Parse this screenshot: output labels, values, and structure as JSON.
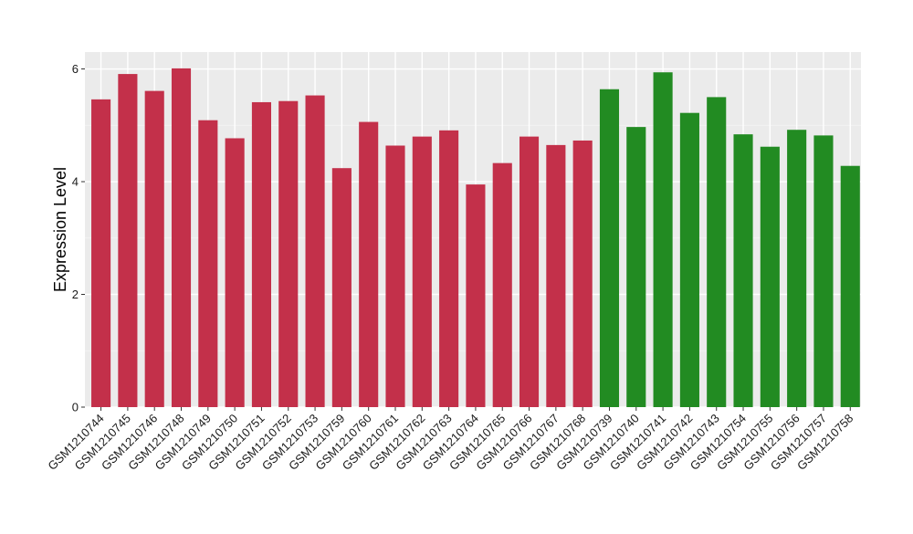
{
  "chart_data": {
    "type": "bar",
    "title": "",
    "xlabel": "",
    "ylabel": "Expression Level",
    "ylim": [
      0,
      6.3
    ],
    "yticks": [
      0,
      2,
      4,
      6
    ],
    "grid": true,
    "legend": "none",
    "categories": [
      "GSM1210744",
      "GSM1210745",
      "GSM1210746",
      "GSM1210748",
      "GSM1210749",
      "GSM1210750",
      "GSM1210751",
      "GSM1210752",
      "GSM1210753",
      "GSM1210759",
      "GSM1210760",
      "GSM1210761",
      "GSM1210762",
      "GSM1210763",
      "GSM1210764",
      "GSM1210765",
      "GSM1210766",
      "GSM1210767",
      "GSM1210768",
      "GSM1210739",
      "GSM1210740",
      "GSM1210741",
      "GSM1210742",
      "GSM1210743",
      "GSM1210754",
      "GSM1210755",
      "GSM1210756",
      "GSM1210757",
      "GSM1210758"
    ],
    "values": [
      5.46,
      5.91,
      5.61,
      6.01,
      5.09,
      4.77,
      5.41,
      5.43,
      5.53,
      4.24,
      5.06,
      4.64,
      4.8,
      4.91,
      3.95,
      4.33,
      4.8,
      4.65,
      4.73,
      5.64,
      4.97,
      5.94,
      5.22,
      5.5,
      4.84,
      4.62,
      4.92,
      4.82,
      4.28
    ],
    "bar_colors": [
      "#C3304A",
      "#C3304A",
      "#C3304A",
      "#C3304A",
      "#C3304A",
      "#C3304A",
      "#C3304A",
      "#C3304A",
      "#C3304A",
      "#C3304A",
      "#C3304A",
      "#C3304A",
      "#C3304A",
      "#C3304A",
      "#C3304A",
      "#C3304A",
      "#C3304A",
      "#C3304A",
      "#C3304A",
      "#228B22",
      "#228B22",
      "#228B22",
      "#228B22",
      "#228B22",
      "#228B22",
      "#228B22",
      "#228B22",
      "#228B22",
      "#228B22"
    ],
    "colors": {
      "panel_background": "#EBEBEB",
      "grid_major": "#FFFFFF",
      "grid_minor": "#F5F5F5",
      "tick_text": "#1A1A1A",
      "axis_title": "#000000"
    }
  }
}
